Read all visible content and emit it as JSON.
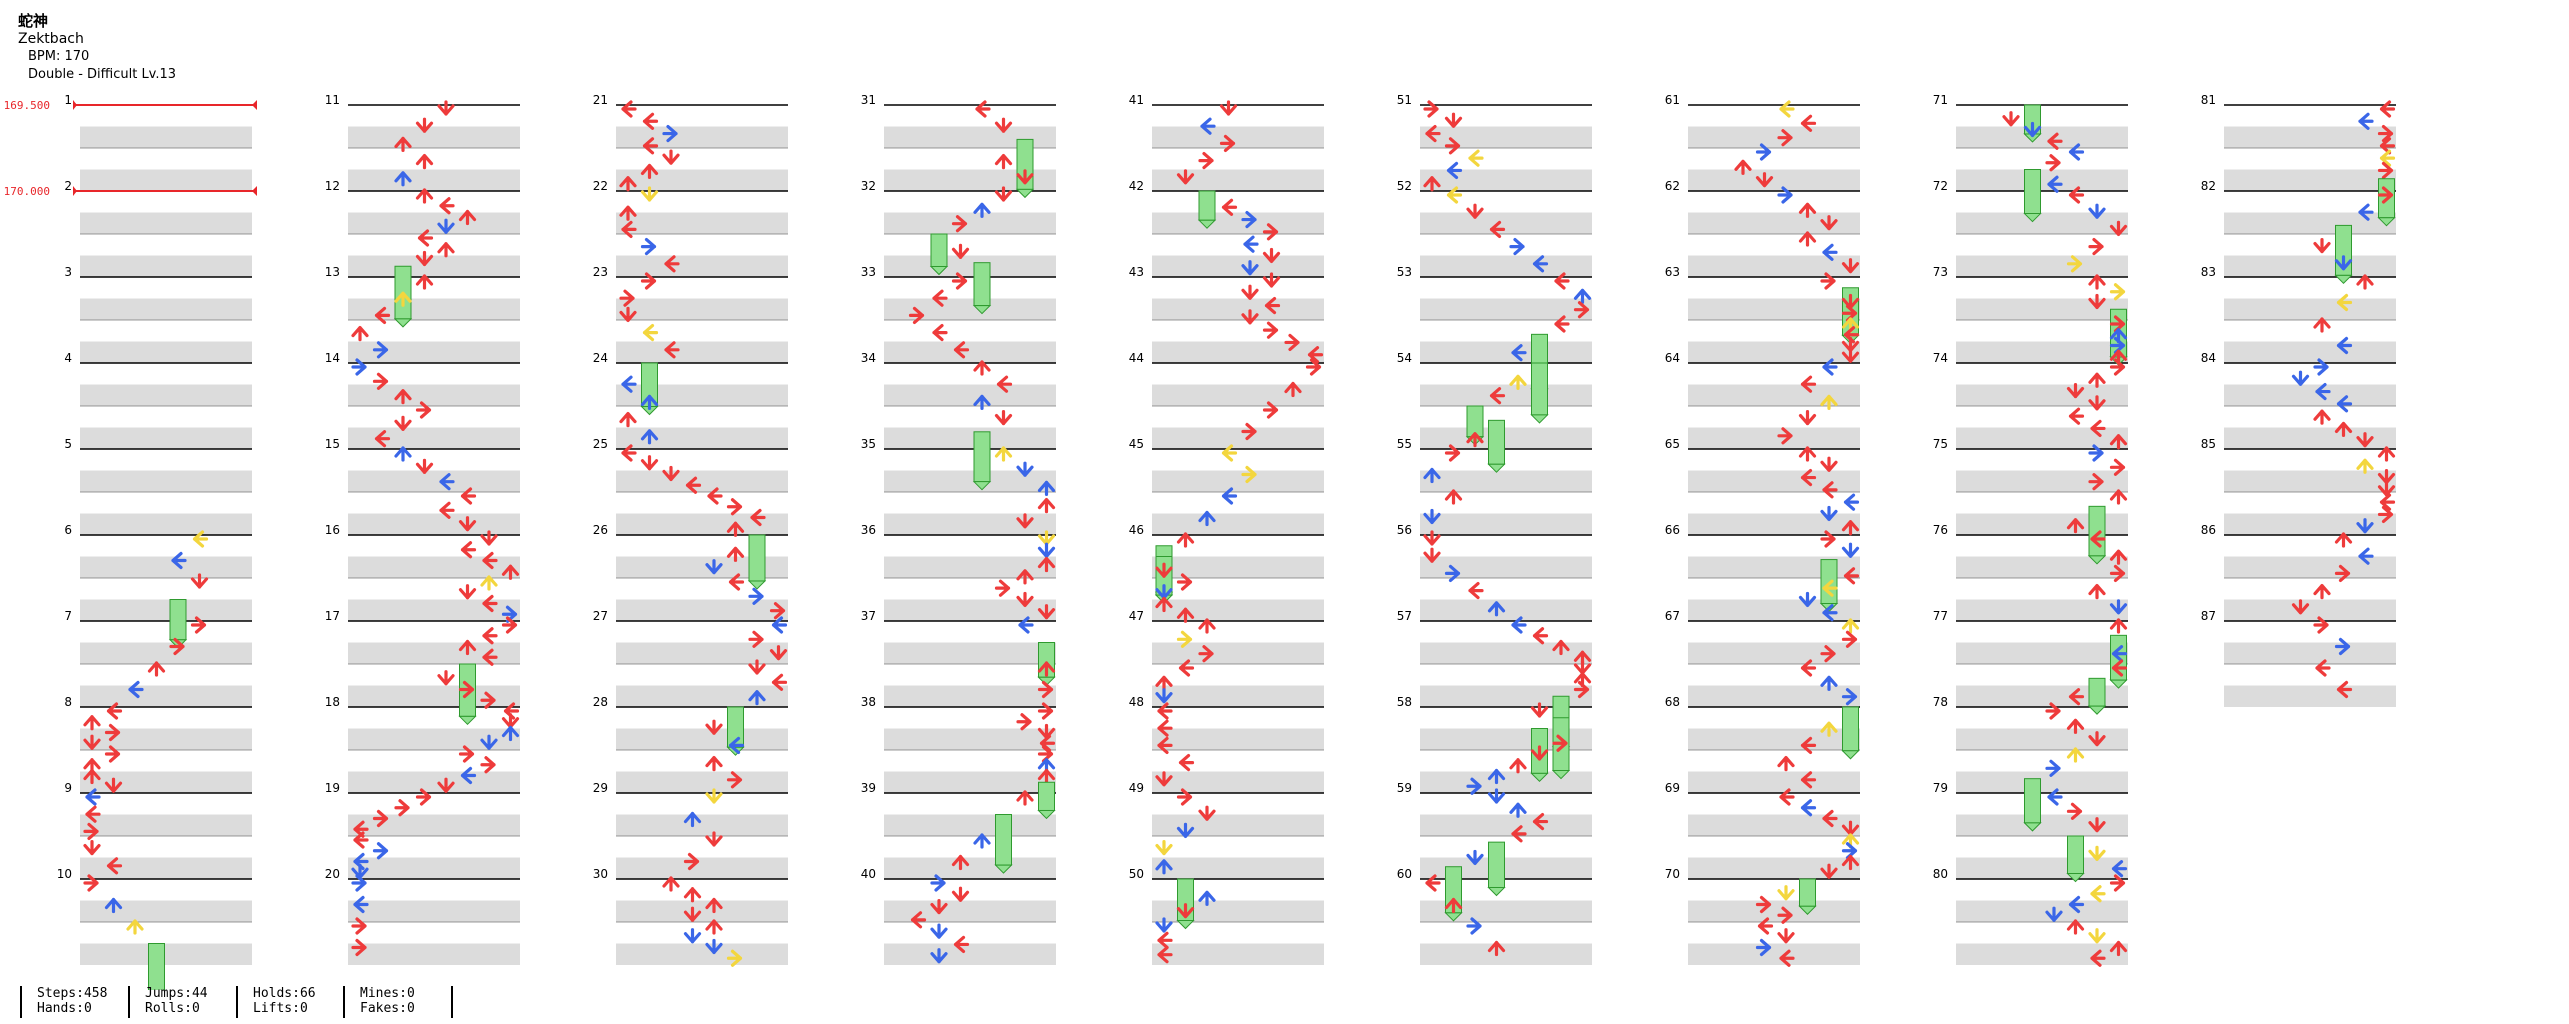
{
  "song": {
    "title": "蛇神",
    "artist": "Zektbach",
    "bpm_text": "BPM: 170",
    "difficulty_text": "Double - Difficult  Lv.13"
  },
  "bpm_changes": [
    {
      "measure": 1,
      "label": "169.500"
    },
    {
      "measure": 2,
      "label": "170.000"
    }
  ],
  "total_measures": 87,
  "colors": {
    "red": "#ee3b3b",
    "blue": "#3a66e8",
    "yellow": "#f3d63e",
    "hold": "#8fe08f",
    "band": "#dcdcdc",
    "line": "#000000",
    "bpm": "#e8262a"
  },
  "stats": {
    "steps": "Steps:458",
    "hands": "Hands:0",
    "jumps": "Jumps:44",
    "rolls": "Rolls:0",
    "holds": "Holds:66",
    "lifts": "Lifts:0",
    "mines": "Mines:0",
    "fakes": "Fakes:0"
  }
}
